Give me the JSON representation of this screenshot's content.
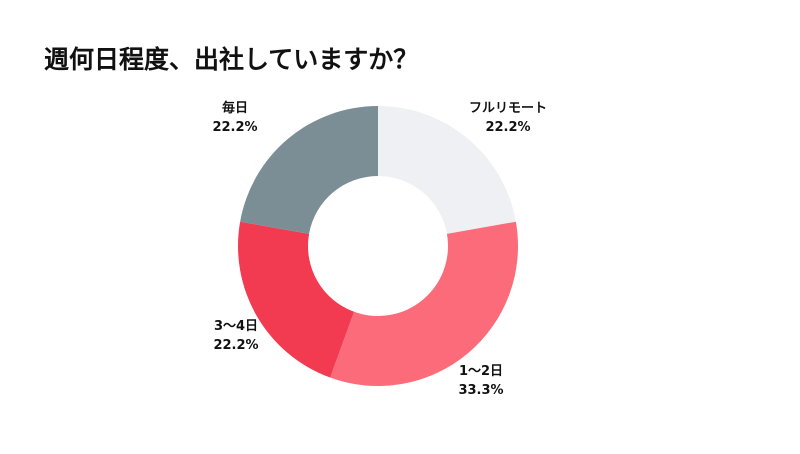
{
  "chart_data": {
    "type": "pie",
    "title": "週何日程度、出社していますか？",
    "categories": [
      "フルリモート",
      "1〜2日",
      "3〜4日",
      "毎日"
    ],
    "values": [
      22.2,
      33.3,
      22.2,
      22.2
    ],
    "value_labels": [
      "22.2%",
      "33.3%",
      "22.2%",
      "22.2%"
    ],
    "colors": [
      "#eef0f3",
      "#fb6b7a",
      "#f23a51",
      "#7b8d95"
    ],
    "donut": true
  }
}
